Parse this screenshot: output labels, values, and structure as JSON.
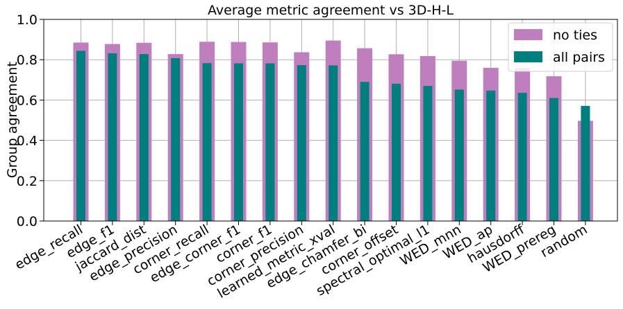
{
  "chart_data": {
    "type": "bar",
    "title": "Average metric agreement vs 3D-H-L",
    "xlabel": "",
    "ylabel": "Group agreement",
    "ylim": [
      0.0,
      1.0
    ],
    "yticks": [
      "0.0",
      "0.2",
      "0.4",
      "0.6",
      "0.8",
      "1.0"
    ],
    "grid": true,
    "legend_position": "top-right",
    "categories": [
      "edge_recall",
      "edge_f1",
      "jaccard_dist",
      "edge_precision",
      "corner_recall",
      "edge_corner_f1",
      "corner_f1",
      "corner_precision",
      "learned_metric_xval",
      "edge_chamfer_bi",
      "corner_offset",
      "spectral_optimal_l1",
      "WED_mnn",
      "WED_ap",
      "hausdorff",
      "WED_prereg",
      "random"
    ],
    "series": [
      {
        "name": "no ties",
        "color": "#bf7fbf",
        "values": [
          0.885,
          0.878,
          0.884,
          0.828,
          0.889,
          0.888,
          0.886,
          0.837,
          0.895,
          0.857,
          0.827,
          0.818,
          0.795,
          0.76,
          0.76,
          0.718,
          0.497
        ]
      },
      {
        "name": "all pairs",
        "color": "#007f7f",
        "values": [
          0.844,
          0.832,
          0.828,
          0.808,
          0.783,
          0.782,
          0.782,
          0.773,
          0.772,
          0.69,
          0.681,
          0.67,
          0.652,
          0.647,
          0.636,
          0.61,
          0.571
        ]
      }
    ]
  }
}
